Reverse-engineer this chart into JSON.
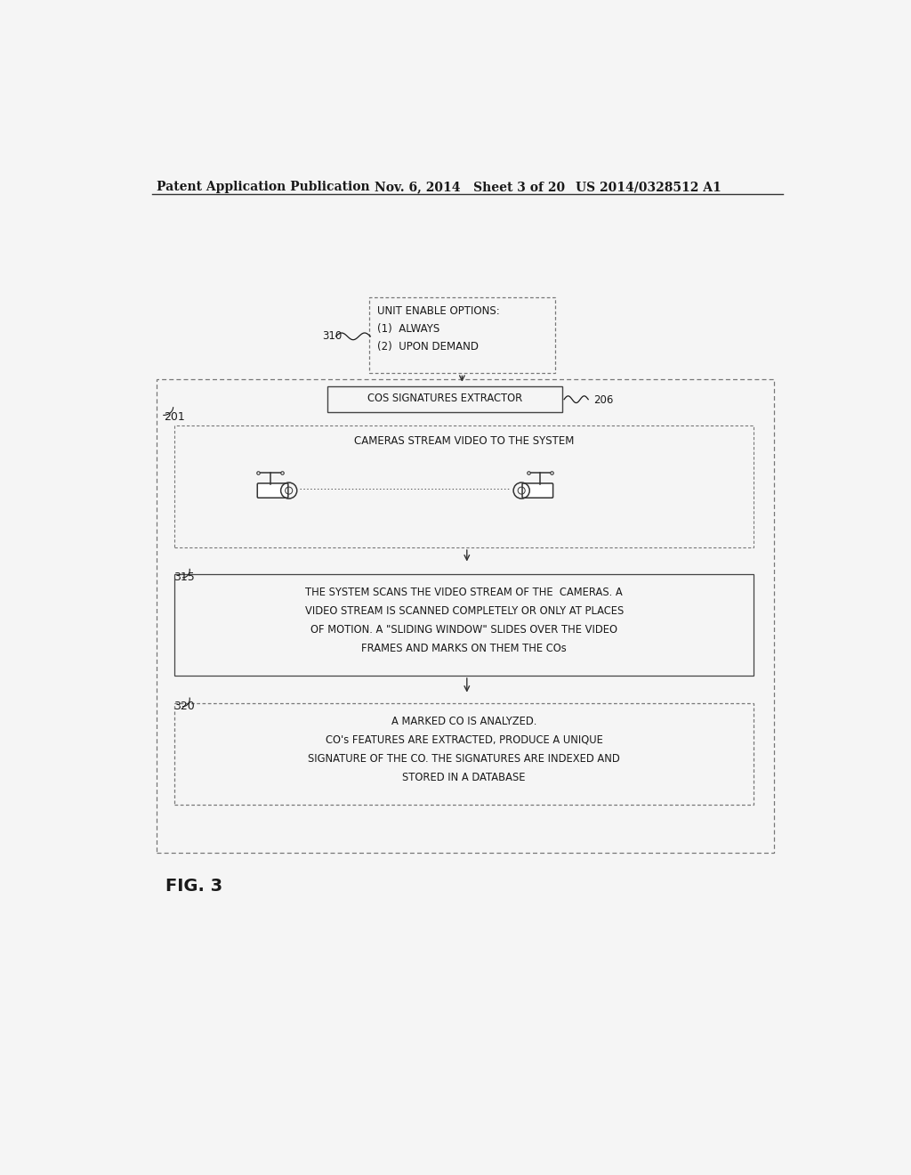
{
  "bg_color": "#f5f5f5",
  "header_left": "Patent Application Publication",
  "header_mid": "Nov. 6, 2014   Sheet 3 of 20",
  "header_right": "US 2014/0328512 A1",
  "fig_label": "FIG. 3",
  "box310_text": "UNIT ENABLE OPTIONS:\n(1)  ALWAYS\n(2)  UPON DEMAND",
  "box310_label": "310",
  "box206_text": "COS SIGNATURES EXTRACTOR",
  "box206_label": "206",
  "box201_label": "201",
  "box_cameras_text": "CAMERAS STREAM VIDEO TO THE SYSTEM",
  "box315_label": "315",
  "box315_text": "THE SYSTEM SCANS THE VIDEO STREAM OF THE  CAMERAS. A\nVIDEO STREAM IS SCANNED COMPLETELY OR ONLY AT PLACES\nOF MOTION. A \"SLIDING WINDOW\" SLIDES OVER THE VIDEO\nFRAMES AND MARKS ON THEM THE COs",
  "box320_label": "320",
  "box320_text": "A MARKED CO IS ANALYZED.\nCO's FEATURES ARE EXTRACTED, PRODUCE A UNIQUE\nSIGNATURE OF THE CO. THE SIGNATURES ARE INDEXED AND\nSTORED IN A DATABASE",
  "text_color": "#1a1a1a",
  "box_edge_color": "#444444",
  "dashed_edge_color": "#777777",
  "arrow_color": "#333333"
}
